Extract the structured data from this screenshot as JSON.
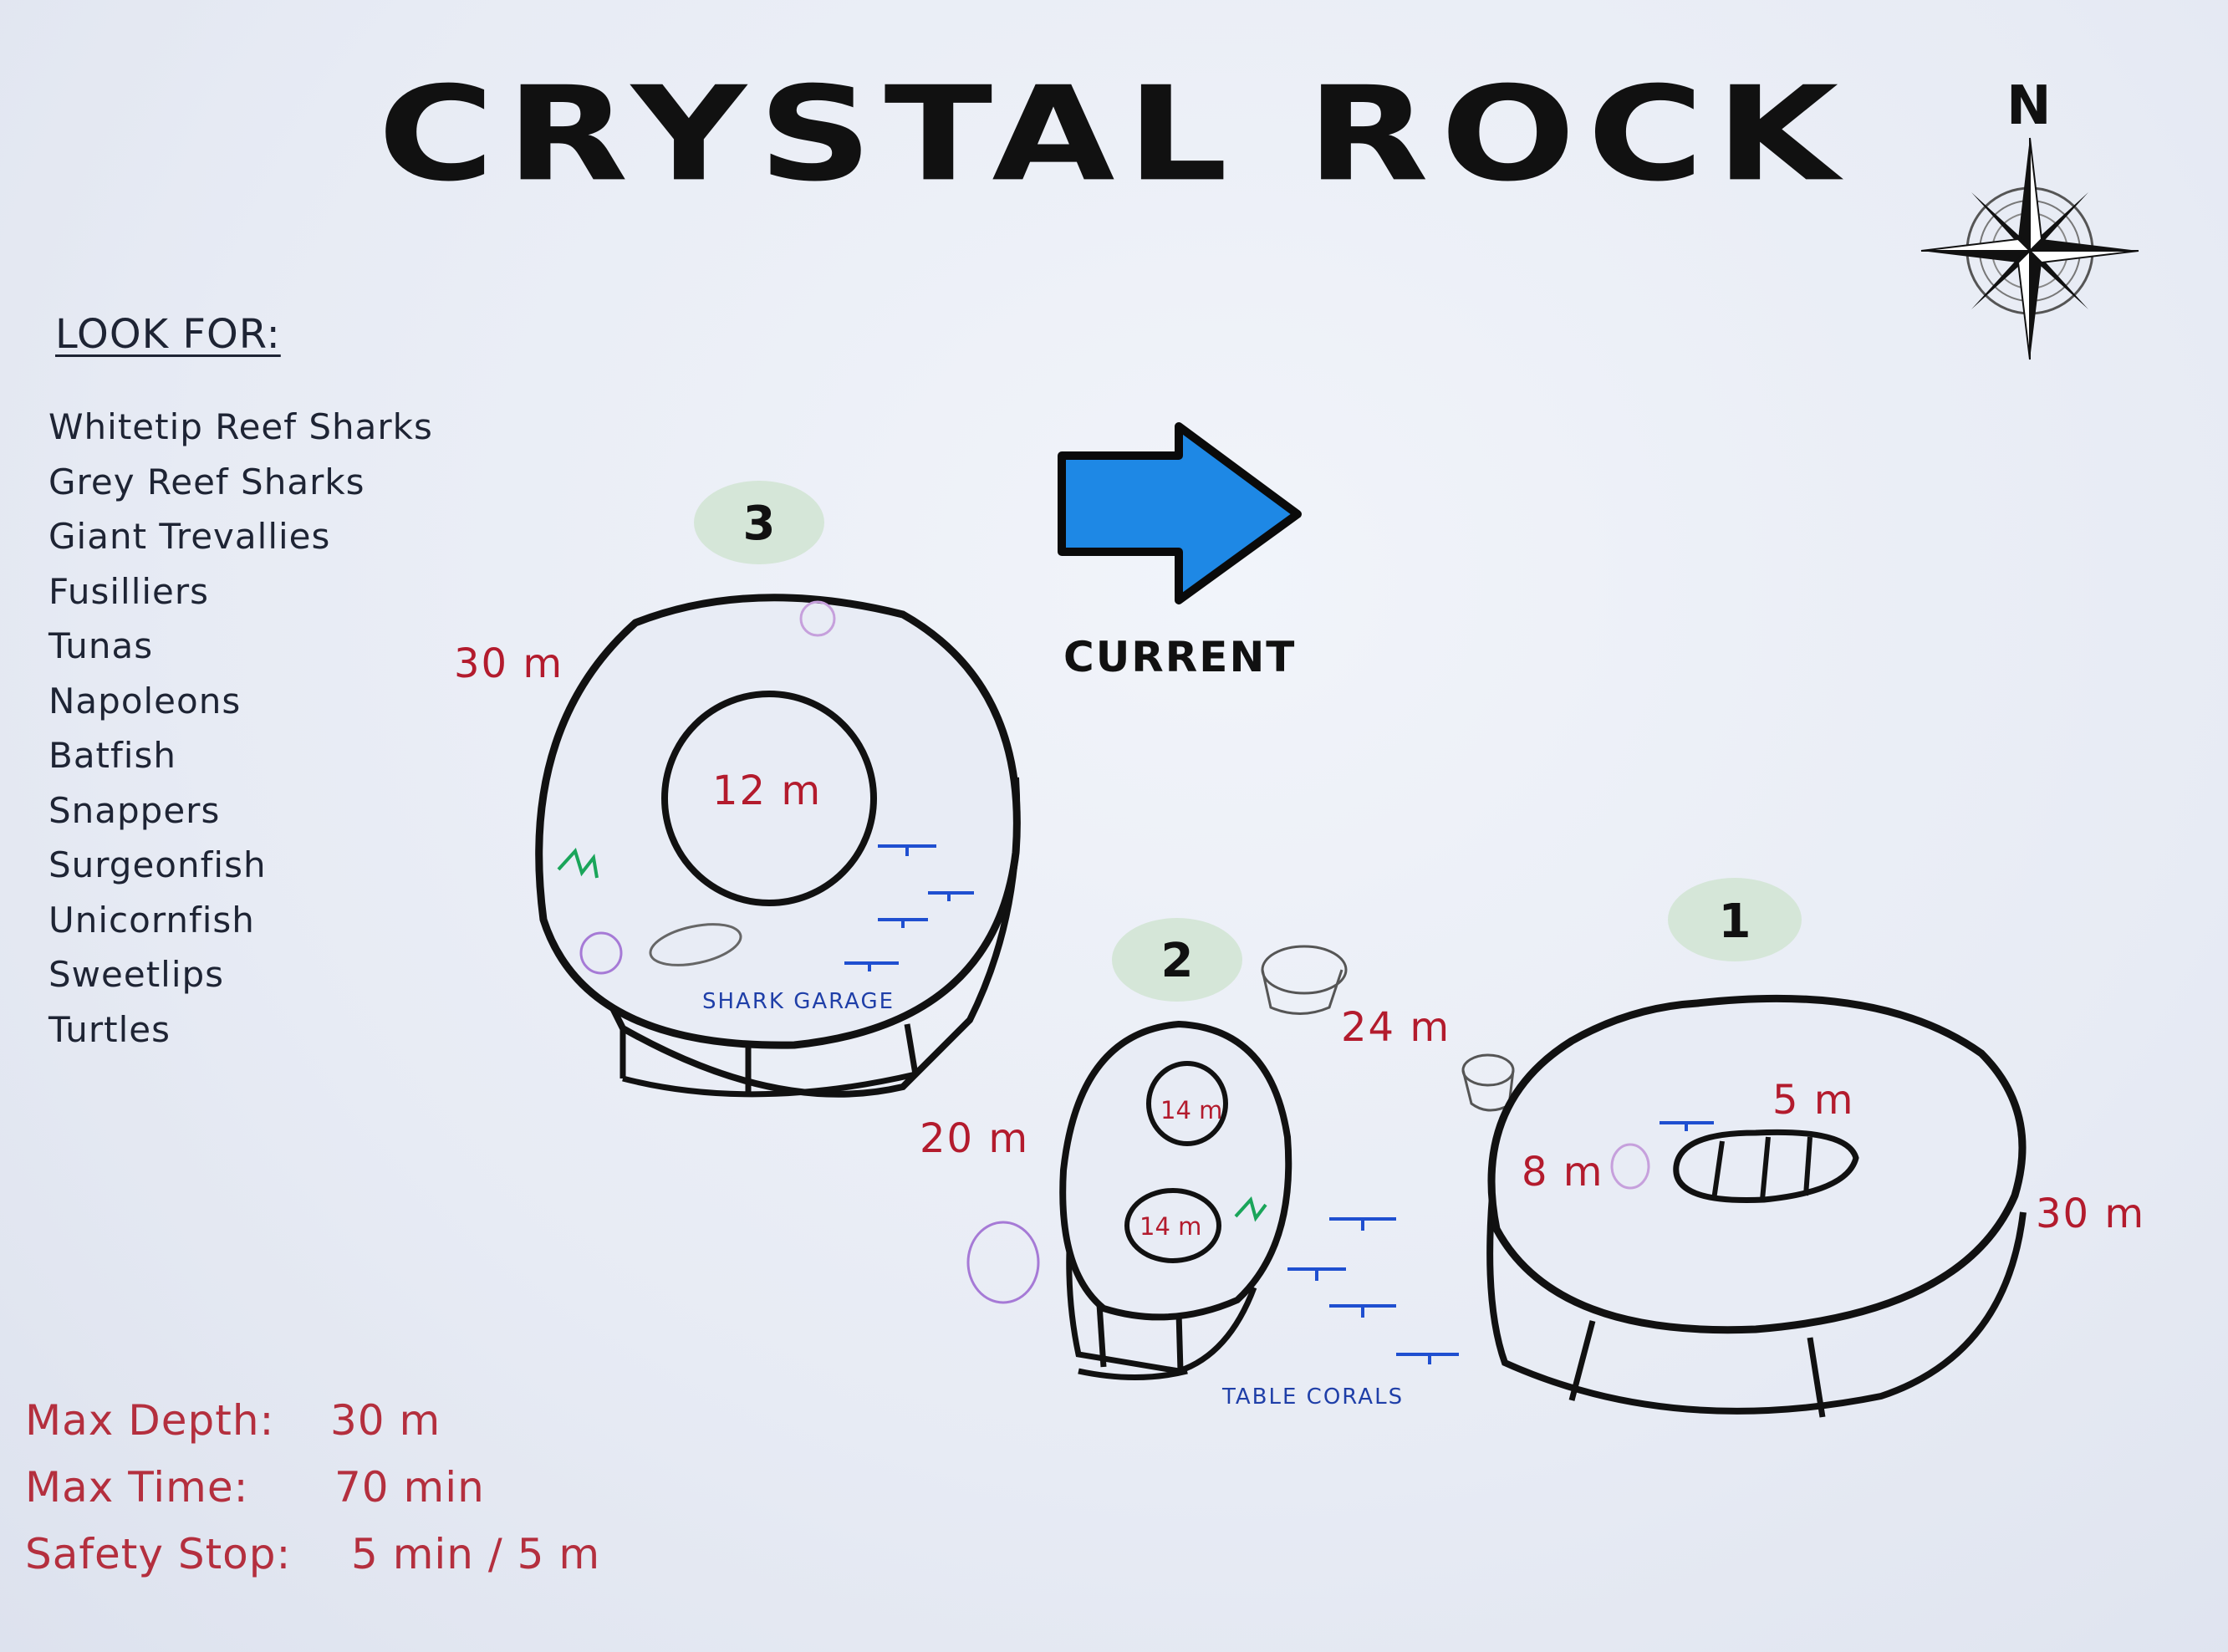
{
  "title": "CRYSTAL ROCK",
  "look_for": {
    "heading": "LOOK FOR:",
    "species": [
      "Whitetip Reef Sharks",
      "Grey Reef Sharks",
      "Giant Trevallies",
      "Fusilliers",
      "Tunas",
      "Napoleons",
      "Batfish",
      "Snappers",
      "Surgeonfish",
      "Unicornfish",
      "Sweetlips",
      "Turtles"
    ]
  },
  "compass": {
    "label": "N"
  },
  "current": {
    "label": "CURRENT",
    "arrow_color": "#1e88e5"
  },
  "sites": [
    {
      "number": "1",
      "outer_depth": "30 m",
      "inner_depths": [
        "5 m",
        "8 m"
      ]
    },
    {
      "number": "2",
      "outer_depth": "20 m",
      "inner_depths": [
        "14 m",
        "14 m"
      ]
    },
    {
      "number": "3",
      "outer_depth": "30 m",
      "inner_depths": [
        "12 m"
      ]
    }
  ],
  "between_depth": "24 m",
  "features": {
    "shark_garage": "SHARK GARAGE",
    "table_corals": "TABLE CORALS"
  },
  "stats": {
    "max_depth_label": "Max Depth:",
    "max_depth_value": "30 m",
    "max_time_label": "Max Time:",
    "max_time_value": "70 min",
    "safety_label": "Safety Stop:",
    "safety_value": "5 min / 5 m"
  },
  "colors": {
    "depth_text": "#b31b2d",
    "stat_text": "#b42f3e",
    "badge": "#d5e6d8",
    "coral_blue": "#1f4fd0"
  }
}
